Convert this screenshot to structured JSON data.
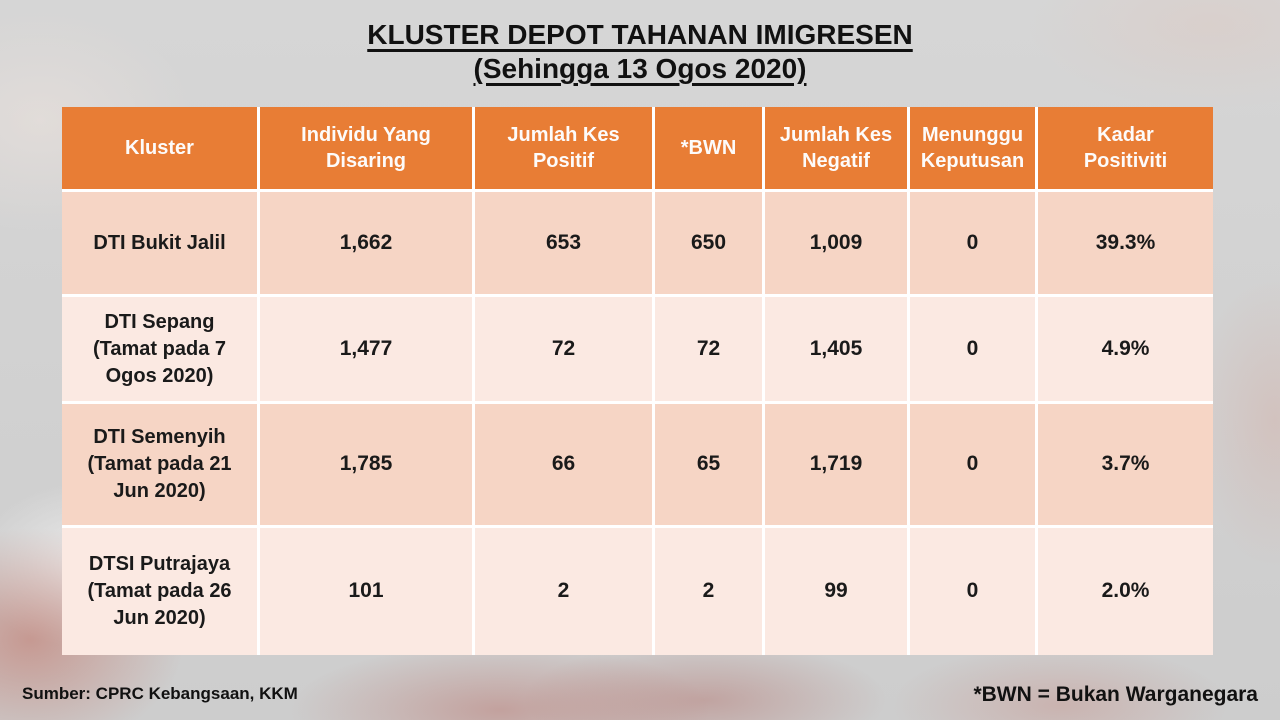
{
  "slide": {
    "title_line1": "KLUSTER DEPOT TAHANAN IMIGRESEN",
    "title_line2": "(Sehingga 13 Ogos 2020)",
    "source_note": "Sumber: CPRC Kebangsaan, KKM",
    "footnote": "*BWN = Bukan Warganegara"
  },
  "colors": {
    "header_bg": "#e87d35",
    "row_band_dark": "#f6d5c5",
    "row_band_light": "#fbe9e2",
    "slide_bg": "#d2d2d2",
    "header_text": "#ffffff",
    "body_text": "#1a1a1a"
  },
  "table": {
    "headers": [
      "Kluster",
      "Individu Yang Disaring",
      "Jumlah Kes Positif",
      "*BWN",
      "Jumlah Kes Negatif",
      "Menunggu Keputusan",
      "Kadar Positiviti"
    ],
    "rows": [
      {
        "cells": [
          "DTI Bukit Jalil",
          "1,662",
          "653",
          "650",
          "1,009",
          "0",
          "39.3%"
        ]
      },
      {
        "cells": [
          [
            "DTI Sepang",
            "(Tamat pada 7",
            "Ogos 2020)"
          ],
          "1,477",
          "72",
          "72",
          "1,405",
          "0",
          "4.9%"
        ]
      },
      {
        "cells": [
          [
            "DTI Semenyih",
            "(Tamat pada 21",
            "Jun 2020)"
          ],
          "1,785",
          "66",
          "65",
          "1,719",
          "0",
          "3.7%"
        ]
      },
      {
        "cells": [
          [
            "DTSI Putrajaya",
            "(Tamat pada 26",
            "Jun 2020)"
          ],
          "101",
          "2",
          "2",
          "99",
          "0",
          "2.0%"
        ]
      }
    ]
  },
  "chart_data": {
    "type": "table",
    "title": "KLUSTER DEPOT TAHANAN IMIGRESEN (Sehingga 13 Ogos 2020)",
    "columns": [
      "Kluster",
      "Individu Yang Disaring",
      "Jumlah Kes Positif",
      "*BWN",
      "Jumlah Kes Negatif",
      "Menunggu Keputusan",
      "Kadar Positiviti"
    ],
    "rows": [
      [
        "DTI Bukit Jalil",
        1662,
        653,
        650,
        1009,
        0,
        "39.3%"
      ],
      [
        "DTI Sepang (Tamat pada 7 Ogos 2020)",
        1477,
        72,
        72,
        1405,
        0,
        "4.9%"
      ],
      [
        "DTI Semenyih (Tamat pada 21 Jun 2020)",
        1785,
        66,
        65,
        1719,
        0,
        "3.7%"
      ],
      [
        "DTSI Putrajaya (Tamat pada 26 Jun 2020)",
        101,
        2,
        2,
        99,
        0,
        "2.0%"
      ]
    ]
  }
}
